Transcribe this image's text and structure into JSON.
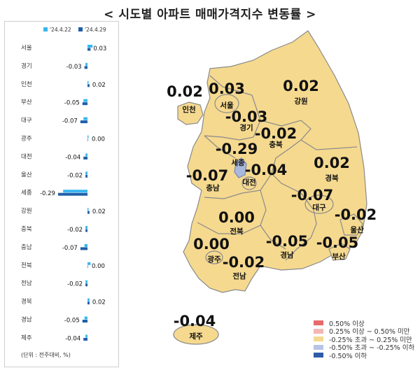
{
  "title": "< 시도별 아파트 매매가격지수 변동률 >",
  "chart_data": [
    {
      "type": "bar",
      "orientation": "horizontal",
      "series": [
        {
          "name": "'24.4.22",
          "color": "#38b6f0",
          "values": [
            0.05,
            -0.02,
            0.01,
            -0.04,
            -0.04,
            0.01,
            -0.02,
            -0.02,
            -0.24,
            0.01,
            -0.02,
            -0.03,
            0.03,
            -0.02,
            0.02,
            -0.03,
            -0.02
          ]
        },
        {
          "name": "'24.4.29",
          "color": "#1f5fa8",
          "values": [
            0.03,
            -0.03,
            0.02,
            -0.05,
            -0.07,
            0.0,
            -0.04,
            -0.02,
            -0.29,
            0.02,
            -0.02,
            -0.07,
            0.0,
            -0.02,
            0.02,
            -0.05,
            -0.04
          ]
        }
      ],
      "categories": [
        "서울",
        "경기",
        "인천",
        "부산",
        "대구",
        "광주",
        "대전",
        "울산",
        "세종",
        "강원",
        "충북",
        "충남",
        "전북",
        "전남",
        "경북",
        "경남",
        "제주"
      ],
      "data_labels": [
        "0.03",
        "-0.03",
        "0.02",
        "-0.05",
        "-0.07",
        "0.00",
        "-0.04",
        "-0.02",
        "-0.29",
        "0.02",
        "-0.02",
        "-0.07",
        "0.00",
        "-0.02",
        "0.02",
        "-0.05",
        "-0.04"
      ],
      "note": "(단위 : 전주대비, %)"
    },
    {
      "type": "map",
      "regions": [
        {
          "name": "인천",
          "value": "0.02"
        },
        {
          "name": "서울",
          "value": "0.03"
        },
        {
          "name": "강원",
          "value": "0.02"
        },
        {
          "name": "경기",
          "value": "-0.03"
        },
        {
          "name": "충북",
          "value": "-0.02"
        },
        {
          "name": "세종",
          "value": "-0.29"
        },
        {
          "name": "대전",
          "value": "-0.04"
        },
        {
          "name": "충남",
          "value": "-0.07"
        },
        {
          "name": "경북",
          "value": "0.02"
        },
        {
          "name": "대구",
          "value": "-0.07"
        },
        {
          "name": "울산",
          "value": "-0.02"
        },
        {
          "name": "전북",
          "value": "0.00"
        },
        {
          "name": "경남",
          "value": "-0.05"
        },
        {
          "name": "부산",
          "value": "-0.05"
        },
        {
          "name": "광주",
          "value": "0.00"
        },
        {
          "name": "전남",
          "value": "-0.02"
        },
        {
          "name": "제주",
          "value": "-0.04"
        }
      ],
      "colors": {
        "base": "#f5d98f",
        "sejong": "#a9b9dd",
        "border": "#888888"
      },
      "legend": [
        {
          "label": "0.50% 이상",
          "color": "#e8696a"
        },
        {
          "label": "0.25% 이상 ~ 0.50% 미만",
          "color": "#f4b8b4"
        },
        {
          "label": "-0.25% 초과 ~ 0.25% 미만",
          "color": "#f5d98f"
        },
        {
          "label": "-0.50% 초과 ~ -0.25% 이하",
          "color": "#b7c4e4"
        },
        {
          "label": "-0.50% 이하",
          "color": "#2f5ba8"
        }
      ]
    }
  ]
}
